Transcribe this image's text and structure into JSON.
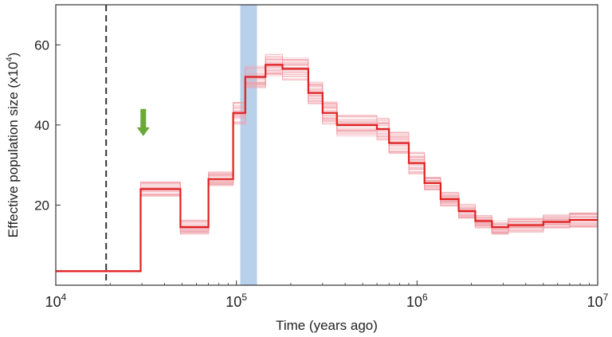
{
  "chart_data": {
    "type": "line",
    "xlabel": "Time (years ago)",
    "ylabel_main": "Effective  population size (x10",
    "ylabel_sup": "4",
    "ylabel_close": ")",
    "x_scale": "log",
    "xlim": [
      10000,
      10000000
    ],
    "ylim": [
      0,
      70
    ],
    "x_ticks": [
      {
        "value": 10000,
        "base": "10",
        "exp": "4"
      },
      {
        "value": 100000,
        "base": "10",
        "exp": "5"
      },
      {
        "value": 1000000,
        "base": "10",
        "exp": "6"
      },
      {
        "value": 10000000,
        "base": "10",
        "exp": "7"
      }
    ],
    "y_ticks": [
      {
        "value": 20,
        "label": "20"
      },
      {
        "value": 40,
        "label": "40"
      },
      {
        "value": 60,
        "label": "60"
      }
    ],
    "series": [
      {
        "style": "step",
        "color": "#e02020",
        "x": [
          10000,
          29500,
          29500,
          49000,
          49000,
          70000,
          70000,
          96000,
          96000,
          112000,
          112000,
          145000,
          145000,
          180000,
          180000,
          250000,
          250000,
          300000,
          300000,
          360000,
          360000,
          600000,
          600000,
          700000,
          700000,
          900000,
          900000,
          1100000,
          1100000,
          1350000,
          1350000,
          1700000,
          1700000,
          2100000,
          2100000,
          2600000,
          2600000,
          3200000,
          3200000,
          5000000,
          5000000,
          7000000,
          7000000,
          10000000
        ],
        "y": [
          3.5,
          3.5,
          24,
          24,
          14.5,
          14.5,
          26.5,
          26.5,
          43,
          43,
          52,
          52,
          55,
          55,
          54,
          54,
          48,
          48,
          43,
          43,
          40,
          40,
          39,
          39,
          35.5,
          35.5,
          30.5,
          30.5,
          25.5,
          25.5,
          21.5,
          21.5,
          18.5,
          18.5,
          16,
          16,
          14.5,
          14.5,
          15,
          15,
          15.8,
          15.8,
          16.3,
          16.3
        ]
      }
    ],
    "bootstrap_color": "#f0a0a8",
    "vline": {
      "x": 19000,
      "style": "dashed",
      "color": "#333333"
    },
    "shaded_band": {
      "x0": 105000,
      "x1": 130000,
      "color": "#b8d0ea"
    },
    "arrow": {
      "x": 30500,
      "y_from": 44,
      "y_to": 38,
      "color": "#6aa83a"
    }
  }
}
